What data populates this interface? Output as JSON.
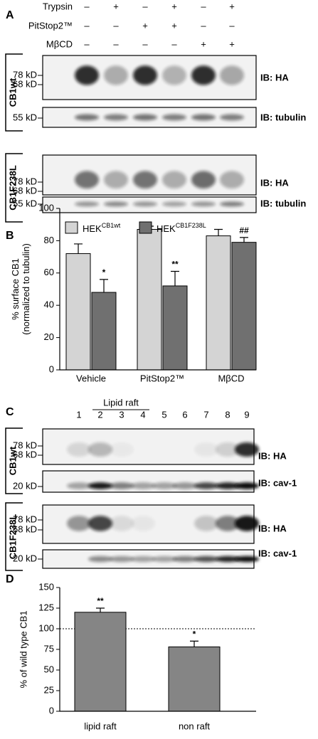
{
  "panels": {
    "a": "A",
    "b": "B",
    "c": "C",
    "d": "D"
  },
  "treatments": [
    {
      "name": "Trypsin",
      "signs": [
        "–",
        "+",
        "–",
        "+",
        "–",
        "+"
      ]
    },
    {
      "name": "PitStop2™",
      "signs": [
        "–",
        "–",
        "+",
        "+",
        "–",
        "–"
      ]
    },
    {
      "name": "MβCD",
      "signs": [
        "–",
        "–",
        "–",
        "–",
        "+",
        "+"
      ]
    }
  ],
  "blots_a": [
    {
      "label": "CB1wt",
      "rows": [
        {
          "markers": [
            "78 kD",
            "68 kD"
          ],
          "ib": "IB: HA"
        },
        {
          "markers": [
            "55 kD"
          ],
          "ib": "IB: tubulin"
        }
      ]
    },
    {
      "label": "CB1F238L",
      "rows": [
        {
          "markers": [
            "78 kD",
            "68 kD"
          ],
          "ib": "IB: HA"
        },
        {
          "markers": [
            "55 kD"
          ],
          "ib": "IB: tubulin"
        }
      ]
    }
  ],
  "lanes_c": [
    "1",
    "2",
    "3",
    "4",
    "5",
    "6",
    "7",
    "8",
    "9"
  ],
  "lipid_raft": "Lipid raft",
  "blots_c": [
    {
      "label": "CB1wt",
      "rows": [
        {
          "markers": [
            "78 kD",
            "68 kD"
          ],
          "ib": "IB: HA"
        },
        {
          "markers": [
            "20 kD"
          ],
          "ib": "IB: cav-1"
        }
      ]
    },
    {
      "label": "CB1F238L",
      "rows": [
        {
          "markers": [
            "78 kD",
            "68 kD"
          ],
          "ib": "IB: HA"
        },
        {
          "markers": [
            "20 kD"
          ],
          "ib": "IB: cav-1"
        }
      ]
    }
  ],
  "chart_data": [
    {
      "type": "bar",
      "ylabel": [
        "% surface CB1",
        "(normalized to tubulin)"
      ],
      "categories": [
        "Vehicle",
        "PitStop2™",
        "MβCD"
      ],
      "series": [
        {
          "name": "HEK",
          "superscript": "CB1wt",
          "color": "#d4d4d4",
          "values": [
            72,
            87,
            83
          ],
          "errors": [
            6,
            2,
            4
          ],
          "markers": [
            null,
            null,
            null
          ]
        },
        {
          "name": "HEK",
          "superscript": "CB1F238L",
          "color": "#707070",
          "values": [
            48,
            52,
            79
          ],
          "errors": [
            8,
            9,
            3
          ],
          "markers": [
            "*",
            "**",
            "##"
          ]
        }
      ],
      "ylim": [
        0,
        100
      ],
      "yticks": [
        0,
        20,
        40,
        60,
        80,
        100
      ]
    },
    {
      "type": "bar",
      "ylabel": [
        "% of wild type CB1"
      ],
      "categories": [
        "lipid raft",
        "non raft"
      ],
      "series": [
        {
          "color": "#858585",
          "values": [
            120,
            78
          ],
          "errors": [
            5,
            7
          ],
          "markers": [
            "**",
            "*"
          ]
        }
      ],
      "hline": 100,
      "ylim": [
        0,
        150
      ],
      "yticks": [
        0,
        25,
        50,
        75,
        100,
        125,
        150
      ]
    }
  ]
}
